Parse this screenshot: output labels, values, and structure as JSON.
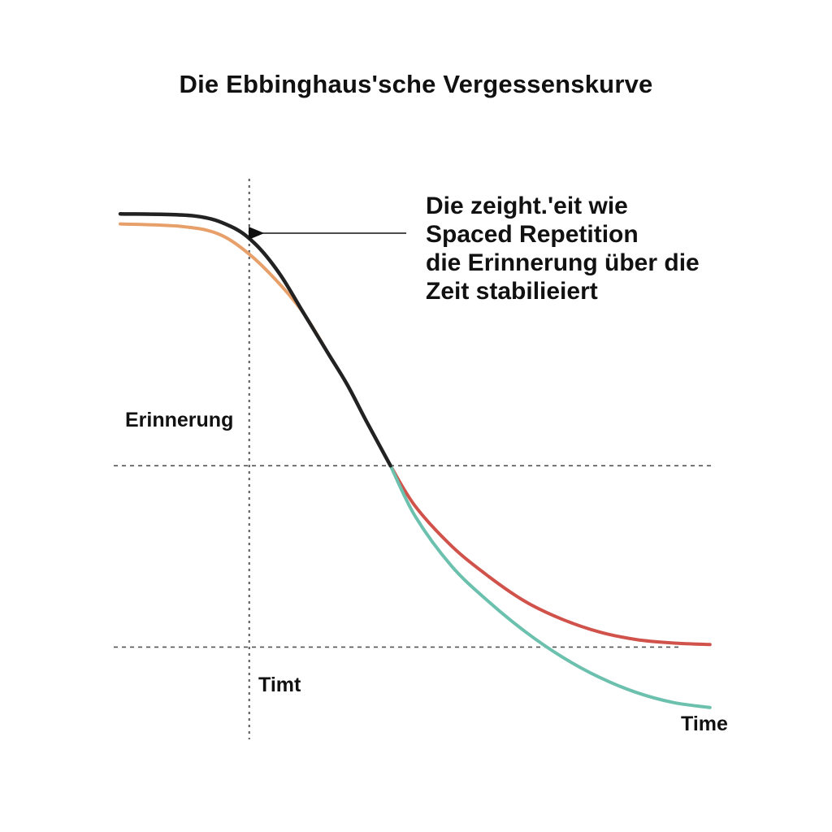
{
  "chart_data": {
    "type": "line",
    "title": "Die Ebbinghaus'sche Vergessenskurve",
    "ylabel": "Erinnerung",
    "xlabel": "Time",
    "annotations": [
      {
        "name": "reference-line-label",
        "text": "Timt"
      },
      {
        "name": "arrow-callout",
        "lines": [
          "Die zeight.'eit wie",
          "Spaced Repetition",
          "die Erinnerung über die",
          "Zeit stabilieiert"
        ]
      }
    ],
    "xlim": [
      0,
      100
    ],
    "ylim": [
      0,
      100
    ],
    "reference_lines": {
      "vertical_x": 21,
      "horizontal_y": [
        44,
        8
      ]
    },
    "grid": false,
    "legend": "none",
    "series": [
      {
        "color": "#E8A06A",
        "points": [
          [
            0,
            92
          ],
          [
            10,
            91.5
          ],
          [
            16,
            90
          ],
          [
            21,
            86
          ],
          [
            26,
            80
          ],
          [
            30,
            74
          ],
          [
            34,
            66
          ]
        ]
      },
      {
        "color": "#222222",
        "points": [
          [
            0,
            94
          ],
          [
            12,
            93.6
          ],
          [
            18,
            91.5
          ],
          [
            22,
            88
          ],
          [
            26,
            82
          ],
          [
            30,
            74
          ],
          [
            34,
            66
          ],
          [
            37,
            60
          ],
          [
            40,
            53
          ],
          [
            44,
            44
          ]
        ]
      },
      {
        "color": "#D0524A",
        "points": [
          [
            44,
            44
          ],
          [
            48,
            36
          ],
          [
            54,
            28
          ],
          [
            60,
            22
          ],
          [
            66,
            17
          ],
          [
            72,
            13.5
          ],
          [
            78,
            11
          ],
          [
            84,
            9.5
          ],
          [
            90,
            8.8
          ],
          [
            96,
            8.5
          ]
        ]
      },
      {
        "color": "#6CC0AE",
        "points": [
          [
            44,
            44
          ],
          [
            48,
            34
          ],
          [
            54,
            24
          ],
          [
            60,
            17
          ],
          [
            66,
            11
          ],
          [
            72,
            6
          ],
          [
            78,
            2
          ],
          [
            84,
            -1
          ],
          [
            90,
            -3
          ],
          [
            96,
            -4
          ]
        ]
      }
    ]
  }
}
